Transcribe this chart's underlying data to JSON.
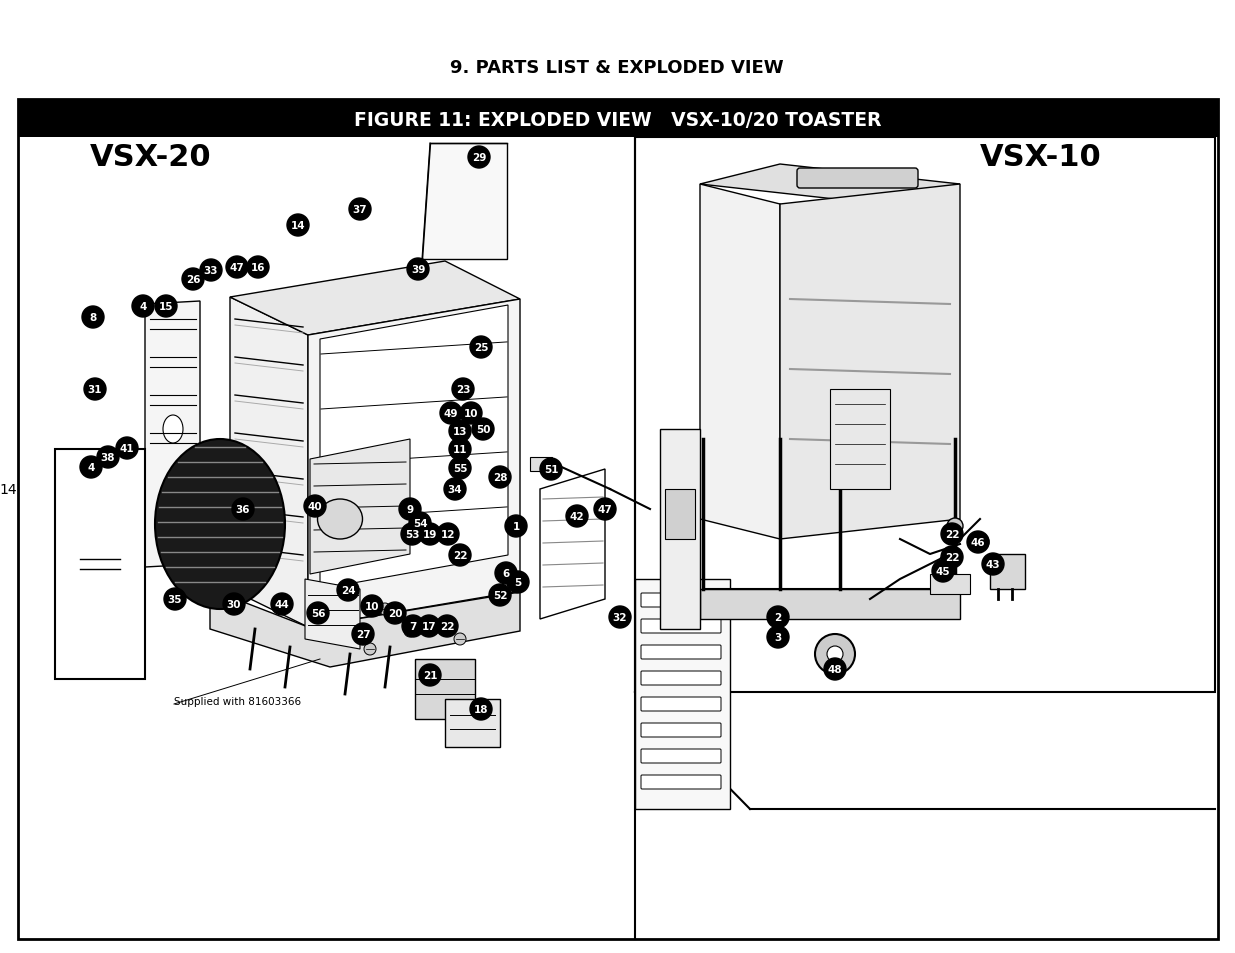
{
  "title": "9. PARTS LIST & EXPLODED VIEW",
  "figure_title": "FIGURE 11: EXPLODED VIEW   VSX-10/20 TOASTER",
  "vsx20_label": "VSX-20",
  "vsx10_label": "VSX-10",
  "page_number": "14",
  "supplied_note": "Supplied with 81603366",
  "bg_color": "#ffffff",
  "header_bg": "#000000",
  "header_text_color": "#ffffff",
  "fig_width": 12.35,
  "fig_height": 9.54,
  "dpi": 100
}
